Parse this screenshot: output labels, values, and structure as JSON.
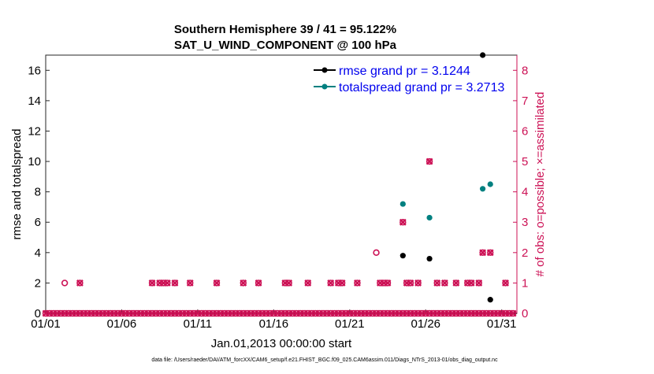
{
  "chart_data": {
    "type": "scatter",
    "title": "Southern Hemisphere 39 / 41 = 95.122%",
    "subtitle": "SAT_U_WIND_COMPONENT @ 100 hPa",
    "xlabel": "Jan.01,2013 00:00:00 start",
    "ylabel": "rmse and totalspread",
    "ylabel_right": "# of obs: o=possible; ×=assimilated",
    "footer": "data file: /Users/raeder/DAI/ATM_forcXX/CAM6_setup/f.e21.FHIST_BGC.f09_025.CAM6assim.011/Diags_NTrS_2013-01/obs_diag_output.nc",
    "x_ticks": [
      "01/01",
      "01/06",
      "01/11",
      "01/16",
      "01/21",
      "01/26",
      "01/31"
    ],
    "x_tick_days": [
      1,
      6,
      11,
      16,
      21,
      26,
      31
    ],
    "xlim": [
      1,
      32
    ],
    "y_ticks": [
      "0",
      "2",
      "4",
      "6",
      "8",
      "10",
      "12",
      "14",
      "16"
    ],
    "ylim": [
      0,
      17
    ],
    "y_right_ticks": [
      "0",
      "1",
      "2",
      "3",
      "4",
      "5",
      "6",
      "7",
      "8"
    ],
    "y_right_lim": [
      0,
      8.5
    ],
    "legend": [
      {
        "label": "rmse grand pr = 3.1244",
        "color": "#000000"
      },
      {
        "label": "totalspread grand pr = 3.2713",
        "color": "#008080"
      }
    ],
    "series": [
      {
        "name": "rmse",
        "axis": "left",
        "color": "#000000",
        "x": [
          24.5,
          26.25,
          29.75,
          30.25
        ],
        "y": [
          3.8,
          3.6,
          17.0,
          0.9
        ]
      },
      {
        "name": "totalspread",
        "axis": "left",
        "color": "#008080",
        "x": [
          24.5,
          26.25,
          29.75,
          30.25
        ],
        "y": [
          7.2,
          6.3,
          8.2,
          8.5
        ]
      },
      {
        "name": "obs possible (nonzero)",
        "axis": "right",
        "color": "#cc1155",
        "marker": "o",
        "x": [
          2.25,
          3.25,
          8.0,
          8.5,
          8.75,
          9.0,
          9.5,
          10.5,
          12.25,
          14.0,
          15.0,
          16.75,
          17.0,
          18.25,
          19.75,
          20.25,
          20.5,
          21.5,
          22.75,
          23.0,
          23.25,
          23.5,
          24.5,
          24.75,
          25.0,
          25.5,
          26.25,
          26.75,
          27.25,
          28.0,
          28.75,
          29.0,
          29.5,
          29.75,
          30.25,
          31.25
        ],
        "y": [
          1,
          1,
          1,
          1,
          1,
          1,
          1,
          1,
          1,
          1,
          1,
          1,
          1,
          1,
          1,
          1,
          1,
          1,
          2,
          1,
          1,
          1,
          3,
          1,
          1,
          1,
          5,
          1,
          1,
          1,
          1,
          1,
          1,
          2,
          2,
          1
        ]
      },
      {
        "name": "obs assimilated (nonzero)",
        "axis": "right",
        "color": "#cc1155",
        "marker": "x",
        "x": [
          3.25,
          8.0,
          8.5,
          8.75,
          9.0,
          9.5,
          10.5,
          12.25,
          14.0,
          15.0,
          16.75,
          17.0,
          18.25,
          19.75,
          20.25,
          20.5,
          21.5,
          23.0,
          23.25,
          23.5,
          24.5,
          24.75,
          25.0,
          25.5,
          26.25,
          26.75,
          27.25,
          28.0,
          28.75,
          29.0,
          29.5,
          29.75,
          30.25,
          31.25
        ],
        "y": [
          1,
          1,
          1,
          1,
          1,
          1,
          1,
          1,
          1,
          1,
          1,
          1,
          1,
          1,
          1,
          1,
          1,
          1,
          1,
          1,
          3,
          1,
          1,
          1,
          5,
          1,
          1,
          1,
          1,
          1,
          1,
          2,
          2,
          1
        ]
      },
      {
        "name": "obs zero baseline",
        "axis": "right",
        "color": "#cc1155",
        "marker": "x",
        "x_start": 1.0,
        "x_end": 31.75,
        "x_step": 0.25,
        "y": 0
      }
    ]
  }
}
